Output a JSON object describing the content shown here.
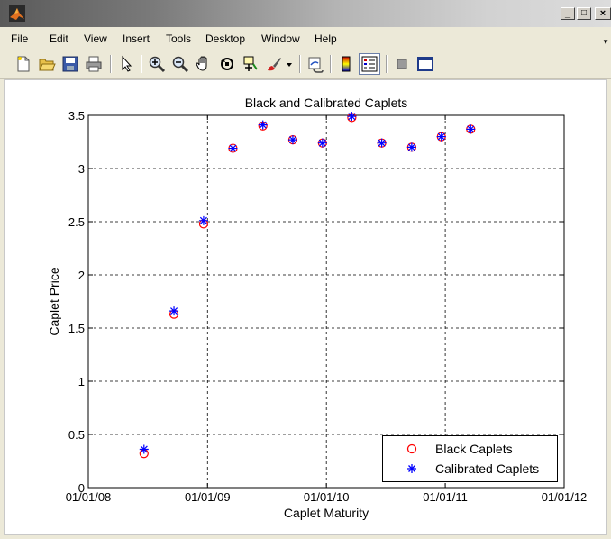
{
  "window": {
    "title": "",
    "controls": {
      "minimize": "_",
      "maximize": "□",
      "close": "×"
    }
  },
  "menubar": {
    "items": [
      "File",
      "Edit",
      "View",
      "Insert",
      "Tools",
      "Desktop",
      "Window",
      "Help"
    ]
  },
  "toolbar": {
    "icons": [
      "new-figure-icon",
      "open-file-icon",
      "save-icon",
      "print-icon",
      "pointer-icon",
      "zoom-in-icon",
      "zoom-out-icon",
      "pan-hand-icon",
      "rotate-3d-icon",
      "data-cursor-icon",
      "brush-icon",
      "brush-dropdown-icon",
      "link-plot-icon",
      "colorbar-icon",
      "legend-icon",
      "hide-plot-tools-icon",
      "show-plot-tools-icon"
    ]
  },
  "chart_data": {
    "type": "scatter",
    "title": "Black and Calibrated Caplets",
    "xlabel": "Caplet Maturity",
    "ylabel": "Caplet Price",
    "x_ticks": [
      "01/01/08",
      "01/01/09",
      "01/01/10",
      "01/01/11",
      "01/01/12"
    ],
    "xlim": [
      "2008-01-01",
      "2012-01-01"
    ],
    "y_ticks": [
      "0",
      "0.5",
      "1",
      "1.5",
      "2",
      "2.5",
      "3",
      "3.5"
    ],
    "ylim": [
      0,
      3.5
    ],
    "grid": true,
    "grid_style": "dotted",
    "legend_position": "bottom-right",
    "series": [
      {
        "name": "Black Caplets",
        "marker": "circle",
        "color": "#ff0000",
        "x": [
          "2008-06-20",
          "2008-09-20",
          "2008-12-20",
          "2009-03-20",
          "2009-06-20",
          "2009-09-20",
          "2009-12-20",
          "2010-03-20",
          "2010-06-20",
          "2010-09-20",
          "2010-12-20",
          "2011-03-20"
        ],
        "y": [
          0.32,
          1.63,
          2.48,
          3.19,
          3.4,
          3.27,
          3.24,
          3.48,
          3.24,
          3.2,
          3.3,
          3.37
        ]
      },
      {
        "name": "Calibrated Caplets",
        "marker": "asterisk",
        "color": "#0000ff",
        "x": [
          "2008-06-20",
          "2008-09-20",
          "2008-12-20",
          "2009-03-20",
          "2009-06-20",
          "2009-09-20",
          "2009-12-20",
          "2010-03-20",
          "2010-06-20",
          "2010-09-20",
          "2010-12-20",
          "2011-03-20"
        ],
        "y": [
          0.36,
          1.66,
          2.51,
          3.19,
          3.41,
          3.27,
          3.24,
          3.49,
          3.24,
          3.2,
          3.3,
          3.37
        ]
      }
    ]
  }
}
